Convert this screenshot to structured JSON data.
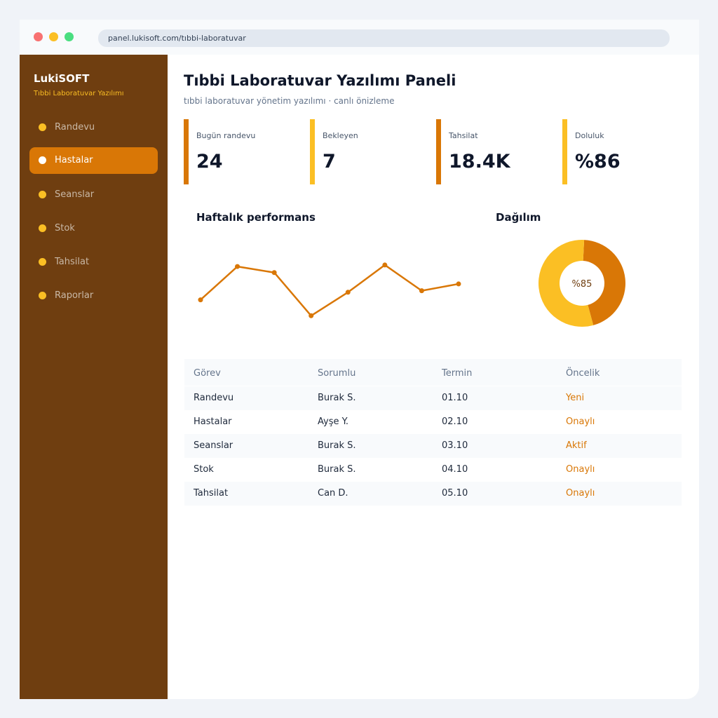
{
  "browser": {
    "url": "panel.lukisoft.com/tıbbi-laboratuvar"
  },
  "sidebar": {
    "brand": "LukiSOFT",
    "subtitle": "Tıbbi Laboratuvar Yazılımı",
    "items": [
      {
        "label": "Randevu",
        "active": false
      },
      {
        "label": "Hastalar",
        "active": true
      },
      {
        "label": "Seanslar",
        "active": false
      },
      {
        "label": "Stok",
        "active": false
      },
      {
        "label": "Tahsilat",
        "active": false
      },
      {
        "label": "Raporlar",
        "active": false
      }
    ]
  },
  "header": {
    "title": "Tıbbi Laboratuvar Yazılımı Paneli",
    "subtitle": "tıbbi laboratuvar yönetim yazılımı · canlı önizleme"
  },
  "stats": [
    {
      "label": "Bugün randevu",
      "value": "24",
      "color": "#d97706"
    },
    {
      "label": "Bekleyen",
      "value": "7",
      "color": "#fbbf24"
    },
    {
      "label": "Tahsilat",
      "value": "18.4K",
      "color": "#d97706"
    },
    {
      "label": "Doluluk",
      "value": "%86",
      "color": "#fbbf24"
    }
  ],
  "performance": {
    "title": "Haftalık performans"
  },
  "distribution": {
    "title": "Dağılım",
    "center_label": "%85"
  },
  "chart_data": [
    {
      "type": "line",
      "title": "Haftalık performans",
      "x": [
        1,
        2,
        3,
        4,
        5,
        6,
        7,
        8
      ],
      "series": [
        {
          "values": [
            30,
            74,
            66,
            9,
            40,
            76,
            42,
            51
          ]
        }
      ],
      "ylim": [
        0,
        100
      ],
      "grid": false,
      "colors": [
        "#d97706"
      ]
    },
    {
      "type": "pie",
      "title": "Dağılım",
      "values": [
        45,
        55
      ],
      "colors": [
        "#d97706",
        "#fbbf24"
      ],
      "center_label": "%85"
    }
  ],
  "table": {
    "headers": [
      "Görev",
      "Sorumlu",
      "Termin",
      "Öncelik"
    ],
    "rows": [
      [
        "Randevu",
        "Burak S.",
        "01.10",
        "Yeni"
      ],
      [
        "Hastalar",
        "Ayşe Y.",
        "02.10",
        "Onaylı"
      ],
      [
        "Seanslar",
        "Burak S.",
        "03.10",
        "Aktif"
      ],
      [
        "Stok",
        "Burak S.",
        "04.10",
        "Onaylı"
      ],
      [
        "Tahsilat",
        "Can D.",
        "05.10",
        "Onaylı"
      ]
    ]
  },
  "colors": {
    "accent": "#d97706",
    "accent_light": "#fbbf24",
    "sidebar": "#6f3e10"
  }
}
